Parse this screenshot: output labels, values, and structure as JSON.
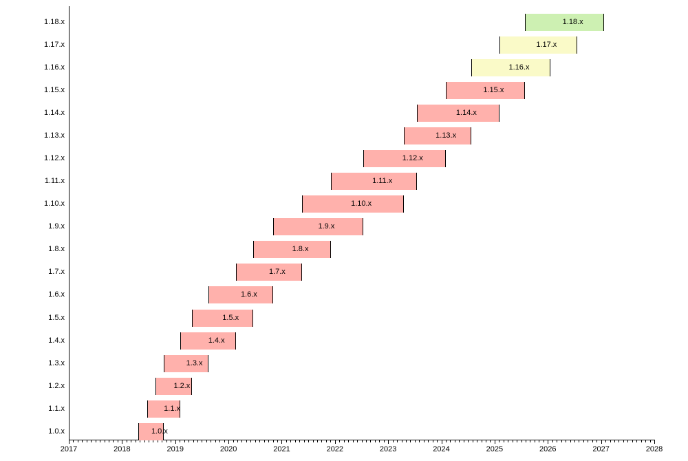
{
  "chart_data": {
    "type": "bar",
    "subtype": "gantt-release-support-timeline",
    "title": "",
    "xlabel": "",
    "ylabel": "",
    "grid": false,
    "legend": "none",
    "x_axis": {
      "min": 2017,
      "max": 2028,
      "major_tick_labels": [
        "2017",
        "2018",
        "2019",
        "2020",
        "2021",
        "2022",
        "2023",
        "2024",
        "2025",
        "2026",
        "2027",
        "2028"
      ],
      "minor_tick_interval_years": 0.0833
    },
    "y_axis": {
      "categories_top_to_bottom": [
        "1.18.x",
        "1.17.x",
        "1.16.x",
        "1.15.x",
        "1.14.x",
        "1.13.x",
        "1.12.x",
        "1.11.x",
        "1.10.x",
        "1.9.x",
        "1.8.x",
        "1.7.x",
        "1.6.x",
        "1.5.x",
        "1.4.x",
        "1.3.x",
        "1.2.x",
        "1.1.x",
        "1.0.x"
      ]
    },
    "colors": {
      "eol": "#ffb1ac",
      "supported": "#fafac8",
      "latest": "#cdf0b2",
      "bar_edge": "#000000",
      "axis": "#000000",
      "text": "#000000",
      "background": "#ffffff"
    },
    "bars": [
      {
        "label": "1.0.x",
        "start": 2018.31,
        "end": 2018.79,
        "status": "eol"
      },
      {
        "label": "1.1.x",
        "start": 2018.47,
        "end": 2019.1,
        "status": "eol"
      },
      {
        "label": "1.2.x",
        "start": 2018.63,
        "end": 2019.31,
        "status": "eol"
      },
      {
        "label": "1.3.x",
        "start": 2018.79,
        "end": 2019.62,
        "status": "eol"
      },
      {
        "label": "1.4.x",
        "start": 2019.1,
        "end": 2020.14,
        "status": "eol"
      },
      {
        "label": "1.5.x",
        "start": 2019.31,
        "end": 2020.46,
        "status": "eol"
      },
      {
        "label": "1.6.x",
        "start": 2019.62,
        "end": 2020.84,
        "status": "eol"
      },
      {
        "label": "1.7.x",
        "start": 2020.14,
        "end": 2021.38,
        "status": "eol"
      },
      {
        "label": "1.8.x",
        "start": 2020.46,
        "end": 2021.93,
        "status": "eol"
      },
      {
        "label": "1.9.x",
        "start": 2020.84,
        "end": 2022.53,
        "status": "eol"
      },
      {
        "label": "1.10.x",
        "start": 2021.38,
        "end": 2023.3,
        "status": "eol"
      },
      {
        "label": "1.11.x",
        "start": 2021.93,
        "end": 2023.54,
        "status": "eol"
      },
      {
        "label": "1.12.x",
        "start": 2022.53,
        "end": 2024.08,
        "status": "eol"
      },
      {
        "label": "1.13.x",
        "start": 2023.3,
        "end": 2024.56,
        "status": "eol"
      },
      {
        "label": "1.14.x",
        "start": 2023.54,
        "end": 2025.09,
        "status": "eol"
      },
      {
        "label": "1.15.x",
        "start": 2024.08,
        "end": 2025.57,
        "status": "eol"
      },
      {
        "label": "1.16.x",
        "start": 2024.56,
        "end": 2026.05,
        "status": "supported"
      },
      {
        "label": "1.17.x",
        "start": 2025.09,
        "end": 2026.55,
        "status": "supported"
      },
      {
        "label": "1.18.x",
        "start": 2025.57,
        "end": 2027.06,
        "status": "latest"
      }
    ]
  }
}
